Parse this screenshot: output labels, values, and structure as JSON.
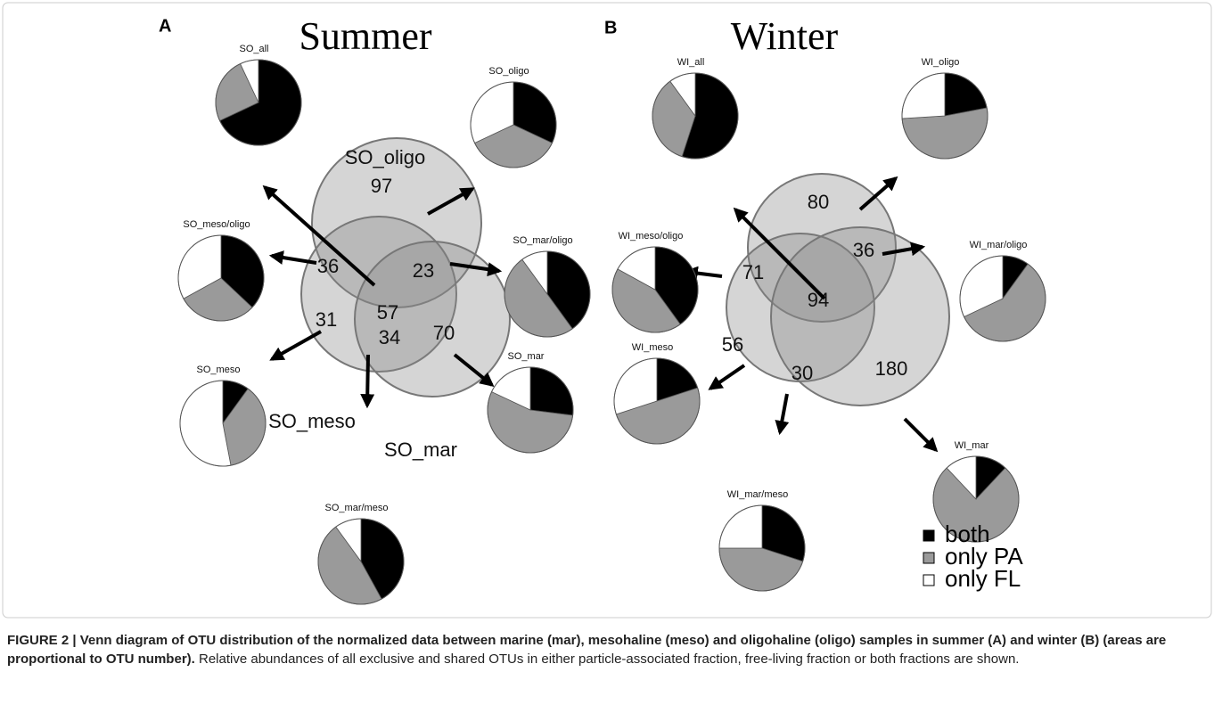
{
  "panels": [
    {
      "label": "A",
      "title": "Summer",
      "sets": [
        "SO_oligo",
        "SO_meso",
        "SO_mar"
      ],
      "regions": [
        97,
        36,
        57,
        23,
        31,
        34,
        70
      ],
      "pies": [
        {
          "name": "SO_all",
          "values": [
            68,
            25,
            7
          ]
        },
        {
          "name": "SO_oligo",
          "values": [
            32,
            36,
            32
          ]
        },
        {
          "name": "SO_meso/oligo",
          "values": [
            37,
            30,
            33
          ]
        },
        {
          "name": "SO_mar/oligo",
          "values": [
            40,
            50,
            10
          ]
        },
        {
          "name": "SO_meso",
          "values": [
            10,
            37,
            53
          ]
        },
        {
          "name": "SO_mar",
          "values": [
            27,
            55,
            18
          ]
        },
        {
          "name": "SO_mar/meso",
          "values": [
            42,
            48,
            10
          ]
        }
      ]
    },
    {
      "label": "B",
      "title": "Winter",
      "regions": [
        80,
        71,
        94,
        36,
        56,
        30,
        180
      ],
      "pies": [
        {
          "name": "WI_all",
          "values": [
            55,
            35,
            10
          ]
        },
        {
          "name": "WI_oligo",
          "values": [
            22,
            52,
            26
          ]
        },
        {
          "name": "WI_meso/oligo",
          "values": [
            40,
            43,
            17
          ]
        },
        {
          "name": "WI_mar/oligo",
          "values": [
            10,
            58,
            32
          ]
        },
        {
          "name": "WI_meso",
          "values": [
            20,
            50,
            30
          ]
        },
        {
          "name": "WI_mar",
          "values": [
            12,
            76,
            12
          ]
        },
        {
          "name": "WI_mar/meso",
          "values": [
            30,
            45,
            25
          ]
        }
      ]
    }
  ],
  "legend": {
    "labels": [
      "both",
      "only PA",
      "only FL"
    ],
    "colors": [
      "#000000",
      "#9a9a9a",
      "#ffffff"
    ]
  },
  "caption": {
    "bold": "FIGURE 2 | Venn diagram of OTU distribution of the normalized data between marine (mar), mesohaline (meso) and oligohaline (oligo) samples in summer (A) and winter (B) (areas are proportional to OTU number).",
    "text": " Relative abundances of all exclusive and shared OTUs in either particle-associated fraction, free-living fraction or both fractions are shown."
  }
}
